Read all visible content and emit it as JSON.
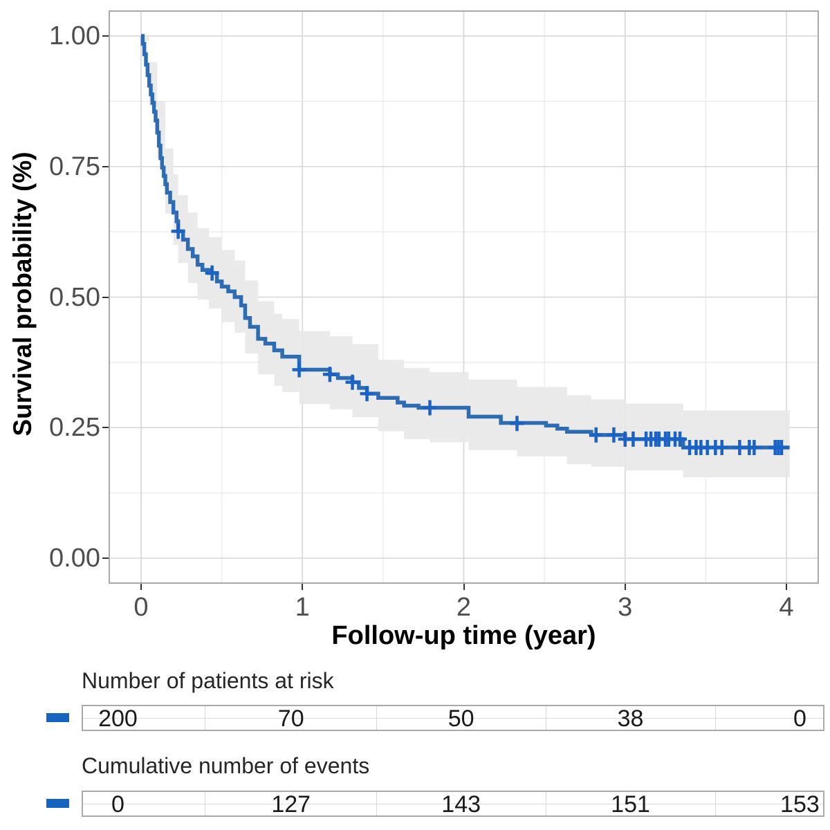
{
  "figure": {
    "background": "#ffffff",
    "panel_border_color": "#a9a9a9",
    "grid_major_color": "#d6d6d6",
    "grid_minor_color": "#e9e9e9",
    "curve_color": "#2d6cb3",
    "censor_color": "#1a63c5",
    "ci_band_color": "#e8e8e8",
    "legend_dash_color": "#1565c0",
    "tick_label_color": "#4d4d4d"
  },
  "chart_data": {
    "type": "line",
    "subtype": "kaplan-meier-step",
    "title": "",
    "xlabel": "Follow-up time (year)",
    "ylabel": "Survival probability (%)",
    "xlim": [
      0,
      4
    ],
    "ylim": [
      0,
      1
    ],
    "x_ticks": [
      "0",
      "1",
      "2",
      "3",
      "4"
    ],
    "y_ticks": [
      "0.00",
      "0.25",
      "0.50",
      "0.75",
      "1.00"
    ],
    "grid": "on",
    "legend_position": "none",
    "series": [
      {
        "name": "Survival probability",
        "step": true,
        "points": [
          [
            0,
            1.0
          ],
          [
            0.01,
            0.985
          ],
          [
            0.02,
            0.965
          ],
          [
            0.03,
            0.945
          ],
          [
            0.04,
            0.925
          ],
          [
            0.05,
            0.905
          ],
          [
            0.06,
            0.888
          ],
          [
            0.07,
            0.872
          ],
          [
            0.08,
            0.855
          ],
          [
            0.09,
            0.838
          ],
          [
            0.1,
            0.815
          ],
          [
            0.11,
            0.79
          ],
          [
            0.12,
            0.766
          ],
          [
            0.13,
            0.748
          ],
          [
            0.14,
            0.732
          ],
          [
            0.15,
            0.716
          ],
          [
            0.16,
            0.7
          ],
          [
            0.18,
            0.682
          ],
          [
            0.2,
            0.662
          ],
          [
            0.22,
            0.645
          ],
          [
            0.23,
            0.626
          ],
          [
            0.26,
            0.61
          ],
          [
            0.29,
            0.592
          ],
          [
            0.32,
            0.578
          ],
          [
            0.35,
            0.562
          ],
          [
            0.38,
            0.552
          ],
          [
            0.42,
            0.546
          ],
          [
            0.47,
            0.53
          ],
          [
            0.5,
            0.52
          ],
          [
            0.54,
            0.511
          ],
          [
            0.58,
            0.5
          ],
          [
            0.62,
            0.484
          ],
          [
            0.645,
            0.46
          ],
          [
            0.675,
            0.443
          ],
          [
            0.725,
            0.42
          ],
          [
            0.77,
            0.411
          ],
          [
            0.825,
            0.398
          ],
          [
            0.875,
            0.386
          ],
          [
            0.98,
            0.361
          ],
          [
            1.17,
            0.352
          ],
          [
            1.22,
            0.345
          ],
          [
            1.31,
            0.337
          ],
          [
            1.35,
            0.326
          ],
          [
            1.4,
            0.315
          ],
          [
            1.47,
            0.307
          ],
          [
            1.59,
            0.298
          ],
          [
            1.63,
            0.292
          ],
          [
            1.72,
            0.288
          ],
          [
            2.03,
            0.271
          ],
          [
            2.23,
            0.259
          ],
          [
            2.51,
            0.254
          ],
          [
            2.58,
            0.248
          ],
          [
            2.64,
            0.242
          ],
          [
            2.79,
            0.236
          ],
          [
            3.0,
            0.228
          ],
          [
            3.36,
            0.212
          ],
          [
            4.02,
            0.212
          ]
        ]
      }
    ],
    "confidence_band": [
      [
        0,
        0.99,
        1.0
      ],
      [
        0.05,
        0.865,
        0.95
      ],
      [
        0.1,
        0.765,
        0.875
      ],
      [
        0.15,
        0.66,
        0.785
      ],
      [
        0.2,
        0.6,
        0.735
      ],
      [
        0.23,
        0.565,
        0.695
      ],
      [
        0.29,
        0.527,
        0.662
      ],
      [
        0.35,
        0.495,
        0.632
      ],
      [
        0.42,
        0.478,
        0.615
      ],
      [
        0.5,
        0.452,
        0.59
      ],
      [
        0.58,
        0.432,
        0.57
      ],
      [
        0.645,
        0.392,
        0.532
      ],
      [
        0.725,
        0.352,
        0.492
      ],
      [
        0.825,
        0.33,
        0.468
      ],
      [
        0.875,
        0.318,
        0.458
      ],
      [
        0.98,
        0.295,
        0.435
      ],
      [
        1.17,
        0.285,
        0.425
      ],
      [
        1.31,
        0.27,
        0.41
      ],
      [
        1.47,
        0.243,
        0.38
      ],
      [
        1.63,
        0.228,
        0.364
      ],
      [
        1.79,
        0.222,
        0.356
      ],
      [
        2.03,
        0.207,
        0.342
      ],
      [
        2.33,
        0.195,
        0.328
      ],
      [
        2.64,
        0.18,
        0.312
      ],
      [
        2.79,
        0.175,
        0.304
      ],
      [
        3.0,
        0.168,
        0.296
      ],
      [
        3.36,
        0.155,
        0.283
      ],
      [
        4.02,
        0.155,
        0.283
      ]
    ],
    "censor_marks": [
      [
        0.23,
        0.626
      ],
      [
        0.44,
        0.546
      ],
      [
        0.98,
        0.361
      ],
      [
        1.17,
        0.352
      ],
      [
        1.31,
        0.337
      ],
      [
        1.4,
        0.315
      ],
      [
        1.79,
        0.288
      ],
      [
        2.33,
        0.258
      ],
      [
        2.82,
        0.236
      ],
      [
        2.93,
        0.236
      ],
      [
        3.0,
        0.228
      ],
      [
        3.05,
        0.228
      ],
      [
        3.13,
        0.228
      ],
      [
        3.16,
        0.228
      ],
      [
        3.19,
        0.228
      ],
      [
        3.21,
        0.228
      ],
      [
        3.25,
        0.228
      ],
      [
        3.27,
        0.228
      ],
      [
        3.31,
        0.228
      ],
      [
        3.34,
        0.228
      ],
      [
        3.4,
        0.212
      ],
      [
        3.44,
        0.212
      ],
      [
        3.47,
        0.212
      ],
      [
        3.51,
        0.212
      ],
      [
        3.56,
        0.212
      ],
      [
        3.6,
        0.212
      ],
      [
        3.71,
        0.212
      ],
      [
        3.77,
        0.212
      ],
      [
        3.8,
        0.212
      ],
      [
        3.93,
        0.212
      ],
      [
        3.95,
        0.212
      ],
      [
        3.97,
        0.212
      ]
    ]
  },
  "risk_table": {
    "title": "Number of patients at risk",
    "times": [
      0,
      1,
      2,
      3,
      4
    ],
    "values": [
      "200",
      "70",
      "50",
      "38",
      "0"
    ]
  },
  "events_table": {
    "title": "Cumulative number of events",
    "times": [
      0,
      1,
      2,
      3,
      4
    ],
    "values": [
      "0",
      "127",
      "143",
      "151",
      "153"
    ]
  }
}
